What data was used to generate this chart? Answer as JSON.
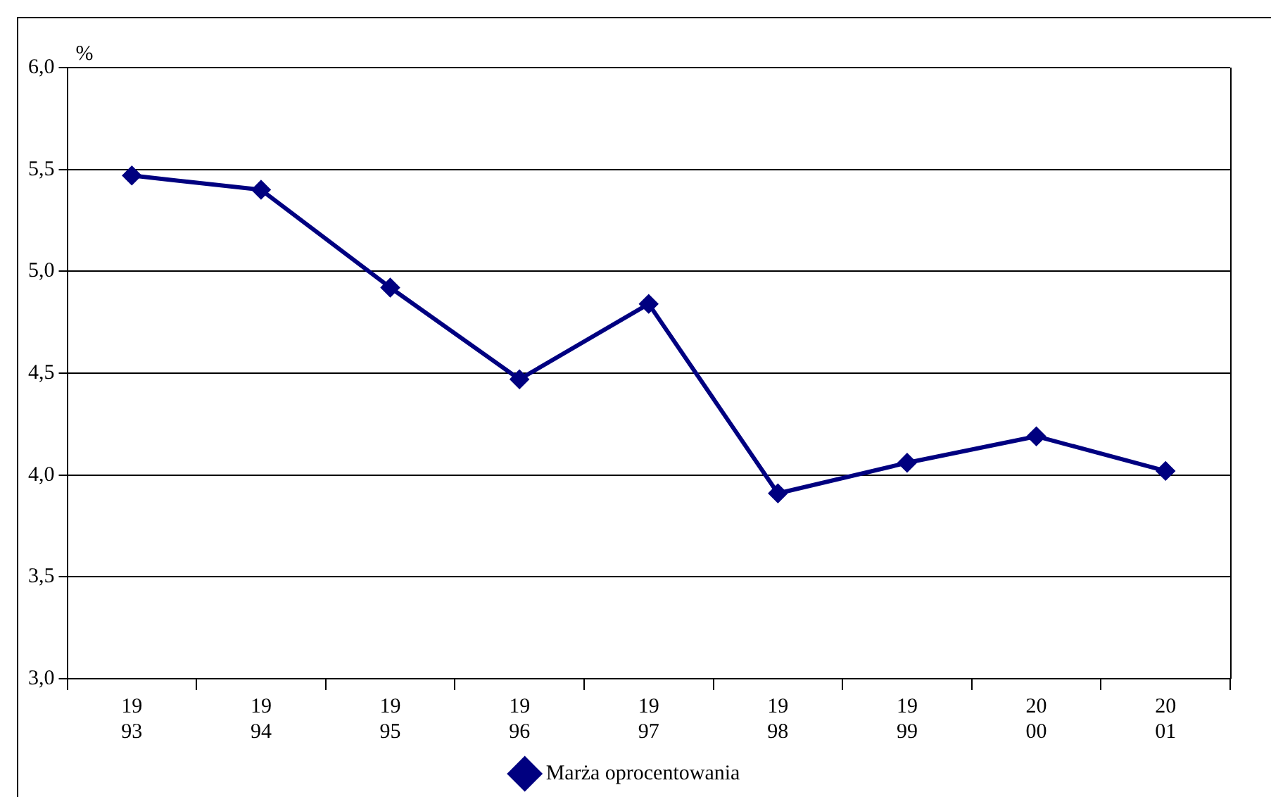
{
  "chart_data": {
    "type": "line",
    "ylabel": "%",
    "categories": [
      "19\n93",
      "19\n94",
      "19\n95",
      "19\n96",
      "19\n97",
      "19\n98",
      "19\n99",
      "20\n00",
      "20\n01"
    ],
    "series": [
      {
        "name": "Marża oprocentowania",
        "color": "#000080",
        "values": [
          5.47,
          5.4,
          4.92,
          4.47,
          4.84,
          3.91,
          4.06,
          4.19,
          4.02
        ]
      }
    ],
    "ylim": [
      3,
      6
    ],
    "yticks": [
      {
        "value": 3,
        "label": "3,0"
      },
      {
        "value": 3.5,
        "label": "3,5"
      },
      {
        "value": 4,
        "label": "4,0"
      },
      {
        "value": 4.5,
        "label": "4,5"
      },
      {
        "value": 5,
        "label": "5,0"
      },
      {
        "value": 5.5,
        "label": "5,5"
      },
      {
        "value": 6,
        "label": "6,0"
      }
    ],
    "grid": "y",
    "legend": "bottom",
    "marker": "diamond",
    "line_style": "solid"
  }
}
